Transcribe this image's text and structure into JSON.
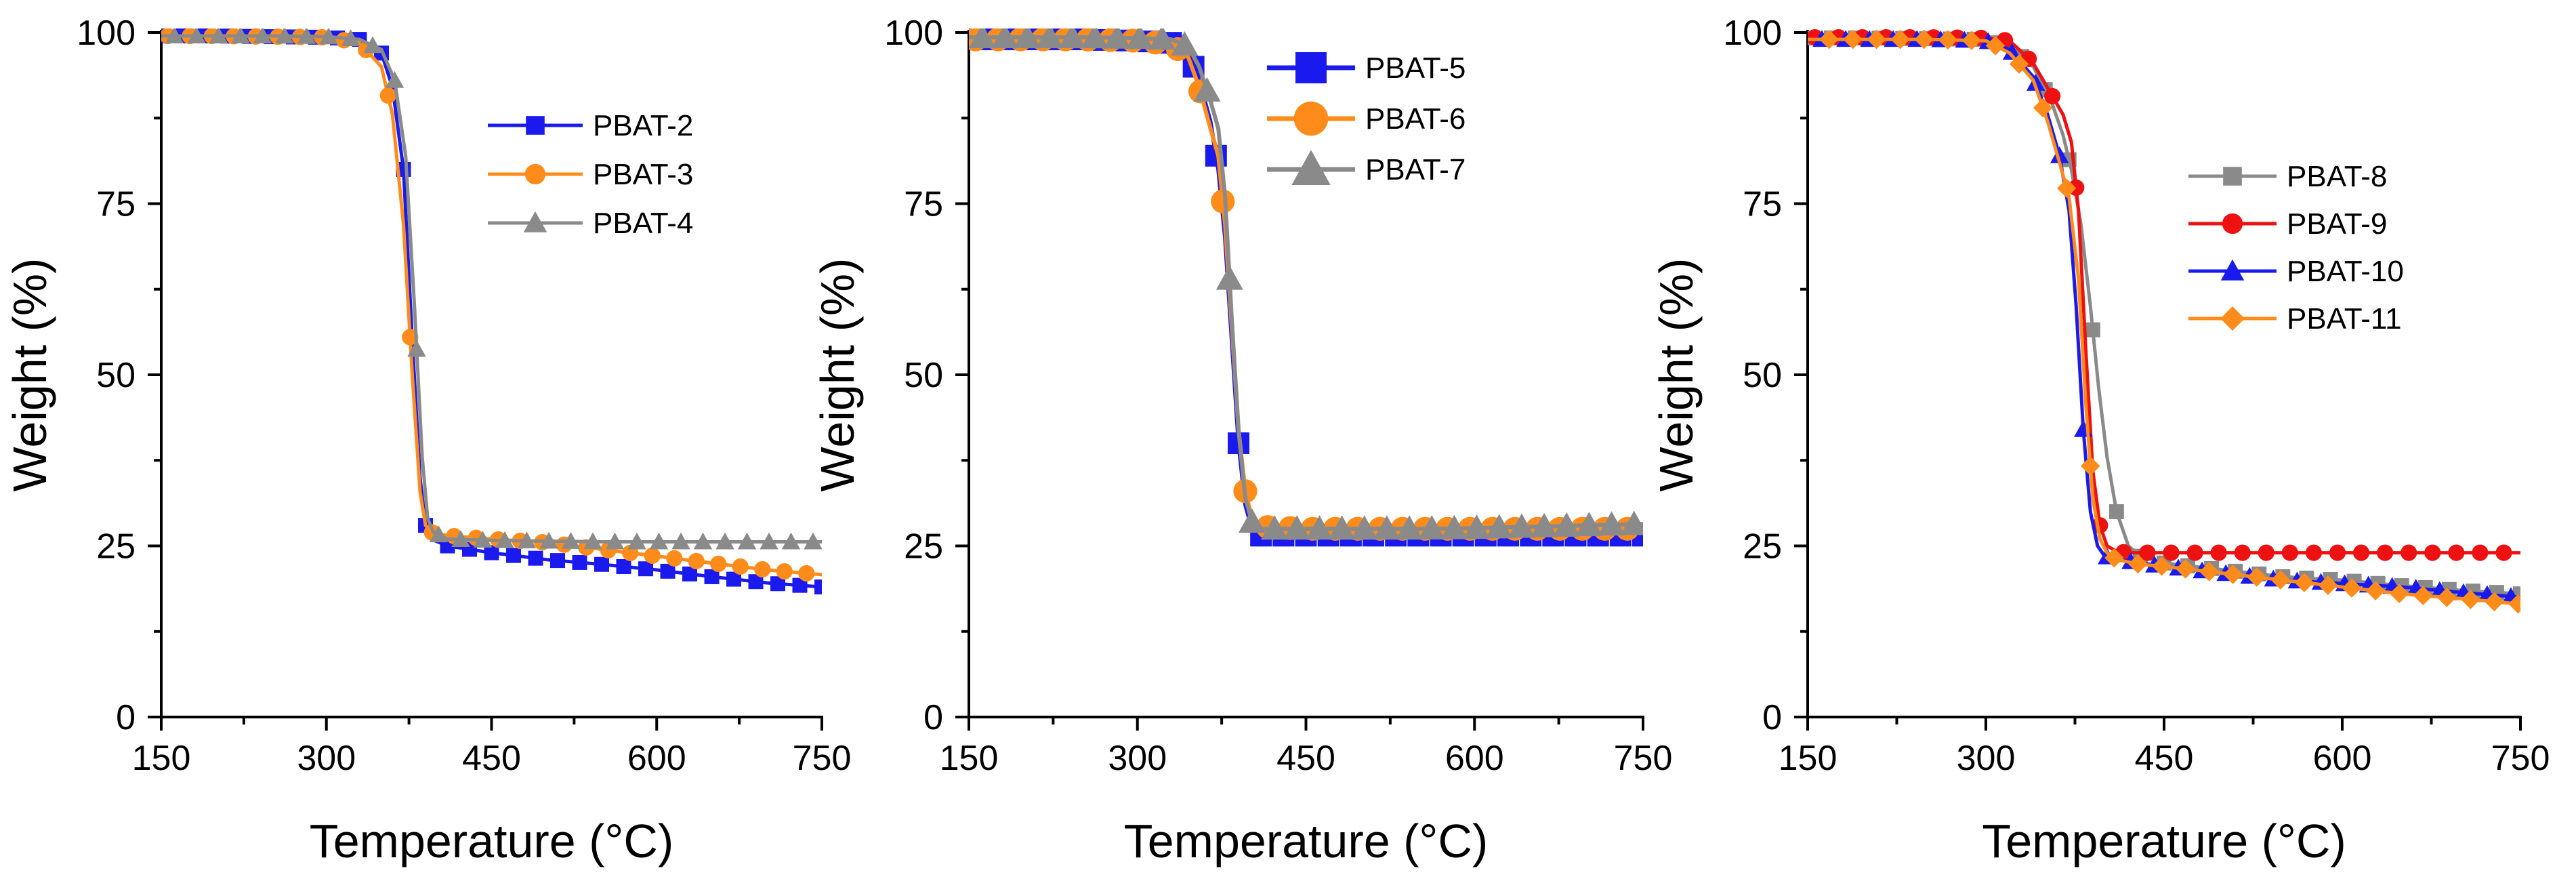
{
  "chart_data": [
    {
      "type": "line",
      "xlabel": "Temperature (°C)",
      "ylabel": "Weight (%)",
      "xlim": [
        150,
        750
      ],
      "ylim": [
        0,
        100
      ],
      "xticks": [
        150,
        300,
        450,
        600,
        750
      ],
      "yticks": [
        0,
        25,
        50,
        75,
        100
      ],
      "legend_position": "top-right",
      "series": [
        {
          "name": "PBAT-2",
          "color": "#1a1aee",
          "marker": "square",
          "x": [
            150,
            200,
            250,
            300,
            330,
            350,
            360,
            370,
            378,
            385,
            390,
            395,
            410,
            450,
            500,
            550,
            600,
            650,
            700,
            750
          ],
          "y": [
            99.5,
            99.5,
            99.4,
            99.3,
            99,
            97,
            92,
            80,
            55,
            35,
            28,
            26,
            25,
            24,
            23,
            22.3,
            21.5,
            20.5,
            19.6,
            19
          ]
        },
        {
          "name": "PBAT-3",
          "color": "#ff8c1a",
          "marker": "circle",
          "x": [
            150,
            200,
            250,
            300,
            330,
            350,
            360,
            370,
            378,
            385,
            390,
            395,
            410,
            450,
            500,
            550,
            600,
            650,
            700,
            750
          ],
          "y": [
            99.5,
            99.5,
            99.4,
            99.3,
            98.5,
            95,
            88,
            72,
            50,
            33,
            28,
            27,
            26.5,
            26,
            25.5,
            24.5,
            23.5,
            22.5,
            21.5,
            20.8
          ]
        },
        {
          "name": "PBAT-4",
          "color": "#8a8a8a",
          "marker": "triangle",
          "x": [
            150,
            200,
            250,
            300,
            330,
            350,
            362,
            372,
            380,
            387,
            392,
            397,
            410,
            450,
            500,
            550,
            600,
            650,
            700,
            750
          ],
          "y": [
            99.5,
            99.5,
            99.5,
            99.4,
            99,
            97.5,
            93,
            82,
            60,
            38,
            29,
            27,
            26,
            25.8,
            25.7,
            25.6,
            25.6,
            25.6,
            25.6,
            25.6
          ]
        }
      ]
    },
    {
      "type": "line",
      "xlabel": "Temperature (°C)",
      "ylabel": "Weight (%)",
      "xlim": [
        150,
        750
      ],
      "ylim": [
        0,
        100
      ],
      "xticks": [
        150,
        300,
        450,
        600,
        750
      ],
      "yticks": [
        0,
        25,
        50,
        75,
        100
      ],
      "legend_position": "top-right",
      "series": [
        {
          "name": "PBAT-5",
          "color": "#1a1aee",
          "marker": "square",
          "x": [
            150,
            200,
            250,
            300,
            330,
            345,
            355,
            365,
            372,
            378,
            384,
            390,
            396,
            402,
            410,
            450,
            500,
            550,
            600,
            650,
            700,
            750
          ],
          "y": [
            99,
            99,
            99,
            98.8,
            98.5,
            97,
            93,
            87,
            80,
            70,
            55,
            40,
            31,
            27.5,
            26.5,
            26.5,
            26.5,
            26.5,
            26.5,
            26.5,
            26.5,
            26.5
          ]
        },
        {
          "name": "PBAT-6",
          "color": "#ff8c1a",
          "marker": "circle",
          "x": [
            150,
            200,
            250,
            300,
            330,
            345,
            355,
            365,
            372,
            378,
            384,
            390,
            396,
            402,
            410,
            450,
            500,
            550,
            600,
            650,
            700,
            750
          ],
          "y": [
            99,
            99,
            99,
            98.8,
            98.3,
            96.5,
            92,
            86,
            82,
            72,
            57,
            42,
            33,
            29,
            27.8,
            27.5,
            27.5,
            27.5,
            27.5,
            27.5,
            27.5,
            27.5
          ]
        },
        {
          "name": "PBAT-7",
          "color": "#8a8a8a",
          "marker": "triangle",
          "x": [
            150,
            200,
            250,
            300,
            330,
            345,
            355,
            365,
            372,
            378,
            384,
            390,
            396,
            402,
            410,
            450,
            500,
            550,
            600,
            650,
            700,
            750
          ],
          "y": [
            99.3,
            99.3,
            99.3,
            99.2,
            99,
            98,
            95,
            90,
            86,
            76,
            58,
            42,
            32,
            28.5,
            27.5,
            27.5,
            27.5,
            27.5,
            27.6,
            27.8,
            28,
            28.2
          ]
        }
      ]
    },
    {
      "type": "line",
      "xlabel": "Temperature (°C)",
      "ylabel": "Weight (%)",
      "xlim": [
        150,
        750
      ],
      "ylim": [
        0,
        100
      ],
      "xticks": [
        150,
        300,
        450,
        600,
        750
      ],
      "yticks": [
        0,
        25,
        50,
        75,
        100
      ],
      "legend_position": "top-right",
      "series": [
        {
          "name": "PBAT-8",
          "color": "#8a8a8a",
          "marker": "square",
          "x": [
            150,
            200,
            250,
            300,
            320,
            340,
            355,
            365,
            372,
            380,
            388,
            395,
            402,
            410,
            420,
            430,
            450,
            500,
            550,
            600,
            650,
            700,
            750
          ],
          "y": [
            99.2,
            99.2,
            99.1,
            99,
            98,
            95,
            90,
            85,
            80,
            72,
            60,
            48,
            38,
            30,
            25,
            23.5,
            22.5,
            21.5,
            20.5,
            20,
            19.2,
            18.5,
            18
          ]
        },
        {
          "name": "PBAT-9",
          "color": "#ee1111",
          "marker": "circle",
          "x": [
            150,
            200,
            250,
            300,
            320,
            340,
            355,
            365,
            372,
            378,
            384,
            390,
            396,
            402,
            410,
            420,
            450,
            500,
            550,
            600,
            650,
            700,
            750
          ],
          "y": [
            99.3,
            99.3,
            99.3,
            99.2,
            98.8,
            95.5,
            91,
            88,
            84,
            74,
            54,
            36,
            28,
            25,
            24.2,
            24,
            24,
            24,
            24,
            24,
            24,
            24,
            24
          ]
        },
        {
          "name": "PBAT-10",
          "color": "#1a1aee",
          "marker": "triangle",
          "x": [
            150,
            200,
            250,
            300,
            320,
            340,
            352,
            362,
            370,
            376,
            382,
            388,
            394,
            400,
            410,
            430,
            450,
            500,
            550,
            600,
            650,
            700,
            750
          ],
          "y": [
            99,
            99,
            99,
            98.8,
            97.5,
            93.5,
            88,
            82,
            74,
            60,
            42,
            30,
            25,
            23.5,
            23,
            22.5,
            22,
            21,
            20,
            19.5,
            19,
            18.2,
            17.5
          ]
        },
        {
          "name": "PBAT-11",
          "color": "#ff8c1a",
          "marker": "diamond",
          "x": [
            150,
            200,
            250,
            300,
            320,
            340,
            352,
            362,
            370,
            378,
            384,
            390,
            396,
            402,
            410,
            430,
            450,
            500,
            550,
            600,
            650,
            700,
            750
          ],
          "y": [
            99,
            99,
            99,
            98.8,
            97,
            93,
            87,
            81,
            76,
            64,
            46,
            32,
            26,
            24,
            23,
            22.3,
            22,
            21,
            20,
            19,
            18,
            17.3,
            16.5
          ]
        }
      ]
    }
  ]
}
